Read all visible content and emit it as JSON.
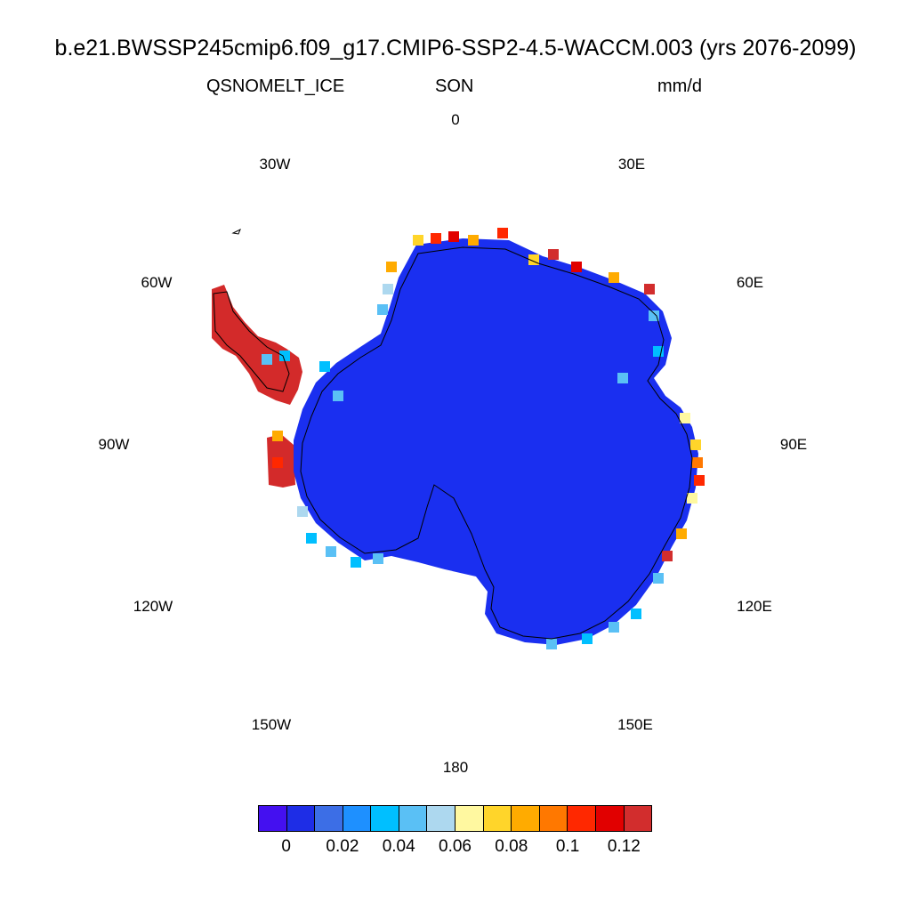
{
  "title": "b.e21.BWSSP245cmip6.f09_g17.CMIP6-SSP2-4.5-WACCM.003 (yrs 2076-2099)",
  "variable": "QSNOMELT_ICE",
  "season": "SON",
  "units": "mm/d",
  "longitude_labels": {
    "lon_0": "0",
    "lon_30e": "30E",
    "lon_60e": "60E",
    "lon_90e": "90E",
    "lon_120e": "120E",
    "lon_150e": "150E",
    "lon_180": "180",
    "lon_150w": "150W",
    "lon_120w": "120W",
    "lon_90w": "90W",
    "lon_60w": "60W",
    "lon_30w": "30W"
  },
  "colorbar": {
    "colors": [
      "#4410f0",
      "#1e2de6",
      "#3c6ee6",
      "#1e90ff",
      "#00bfff",
      "#5ac0f5",
      "#add8ef",
      "#fff8a0",
      "#ffd52a",
      "#ffab00",
      "#ff7800",
      "#ff2800",
      "#e10000",
      "#d22d2d"
    ],
    "tick_labels": [
      "0",
      "0.02",
      "0.04",
      "0.06",
      "0.08",
      "0.1",
      "0.12"
    ]
  },
  "legend_colors": {
    "land_ice": "#1a2ff0",
    "warm_coast": "#d32a2a",
    "coastline": "#000000"
  }
}
